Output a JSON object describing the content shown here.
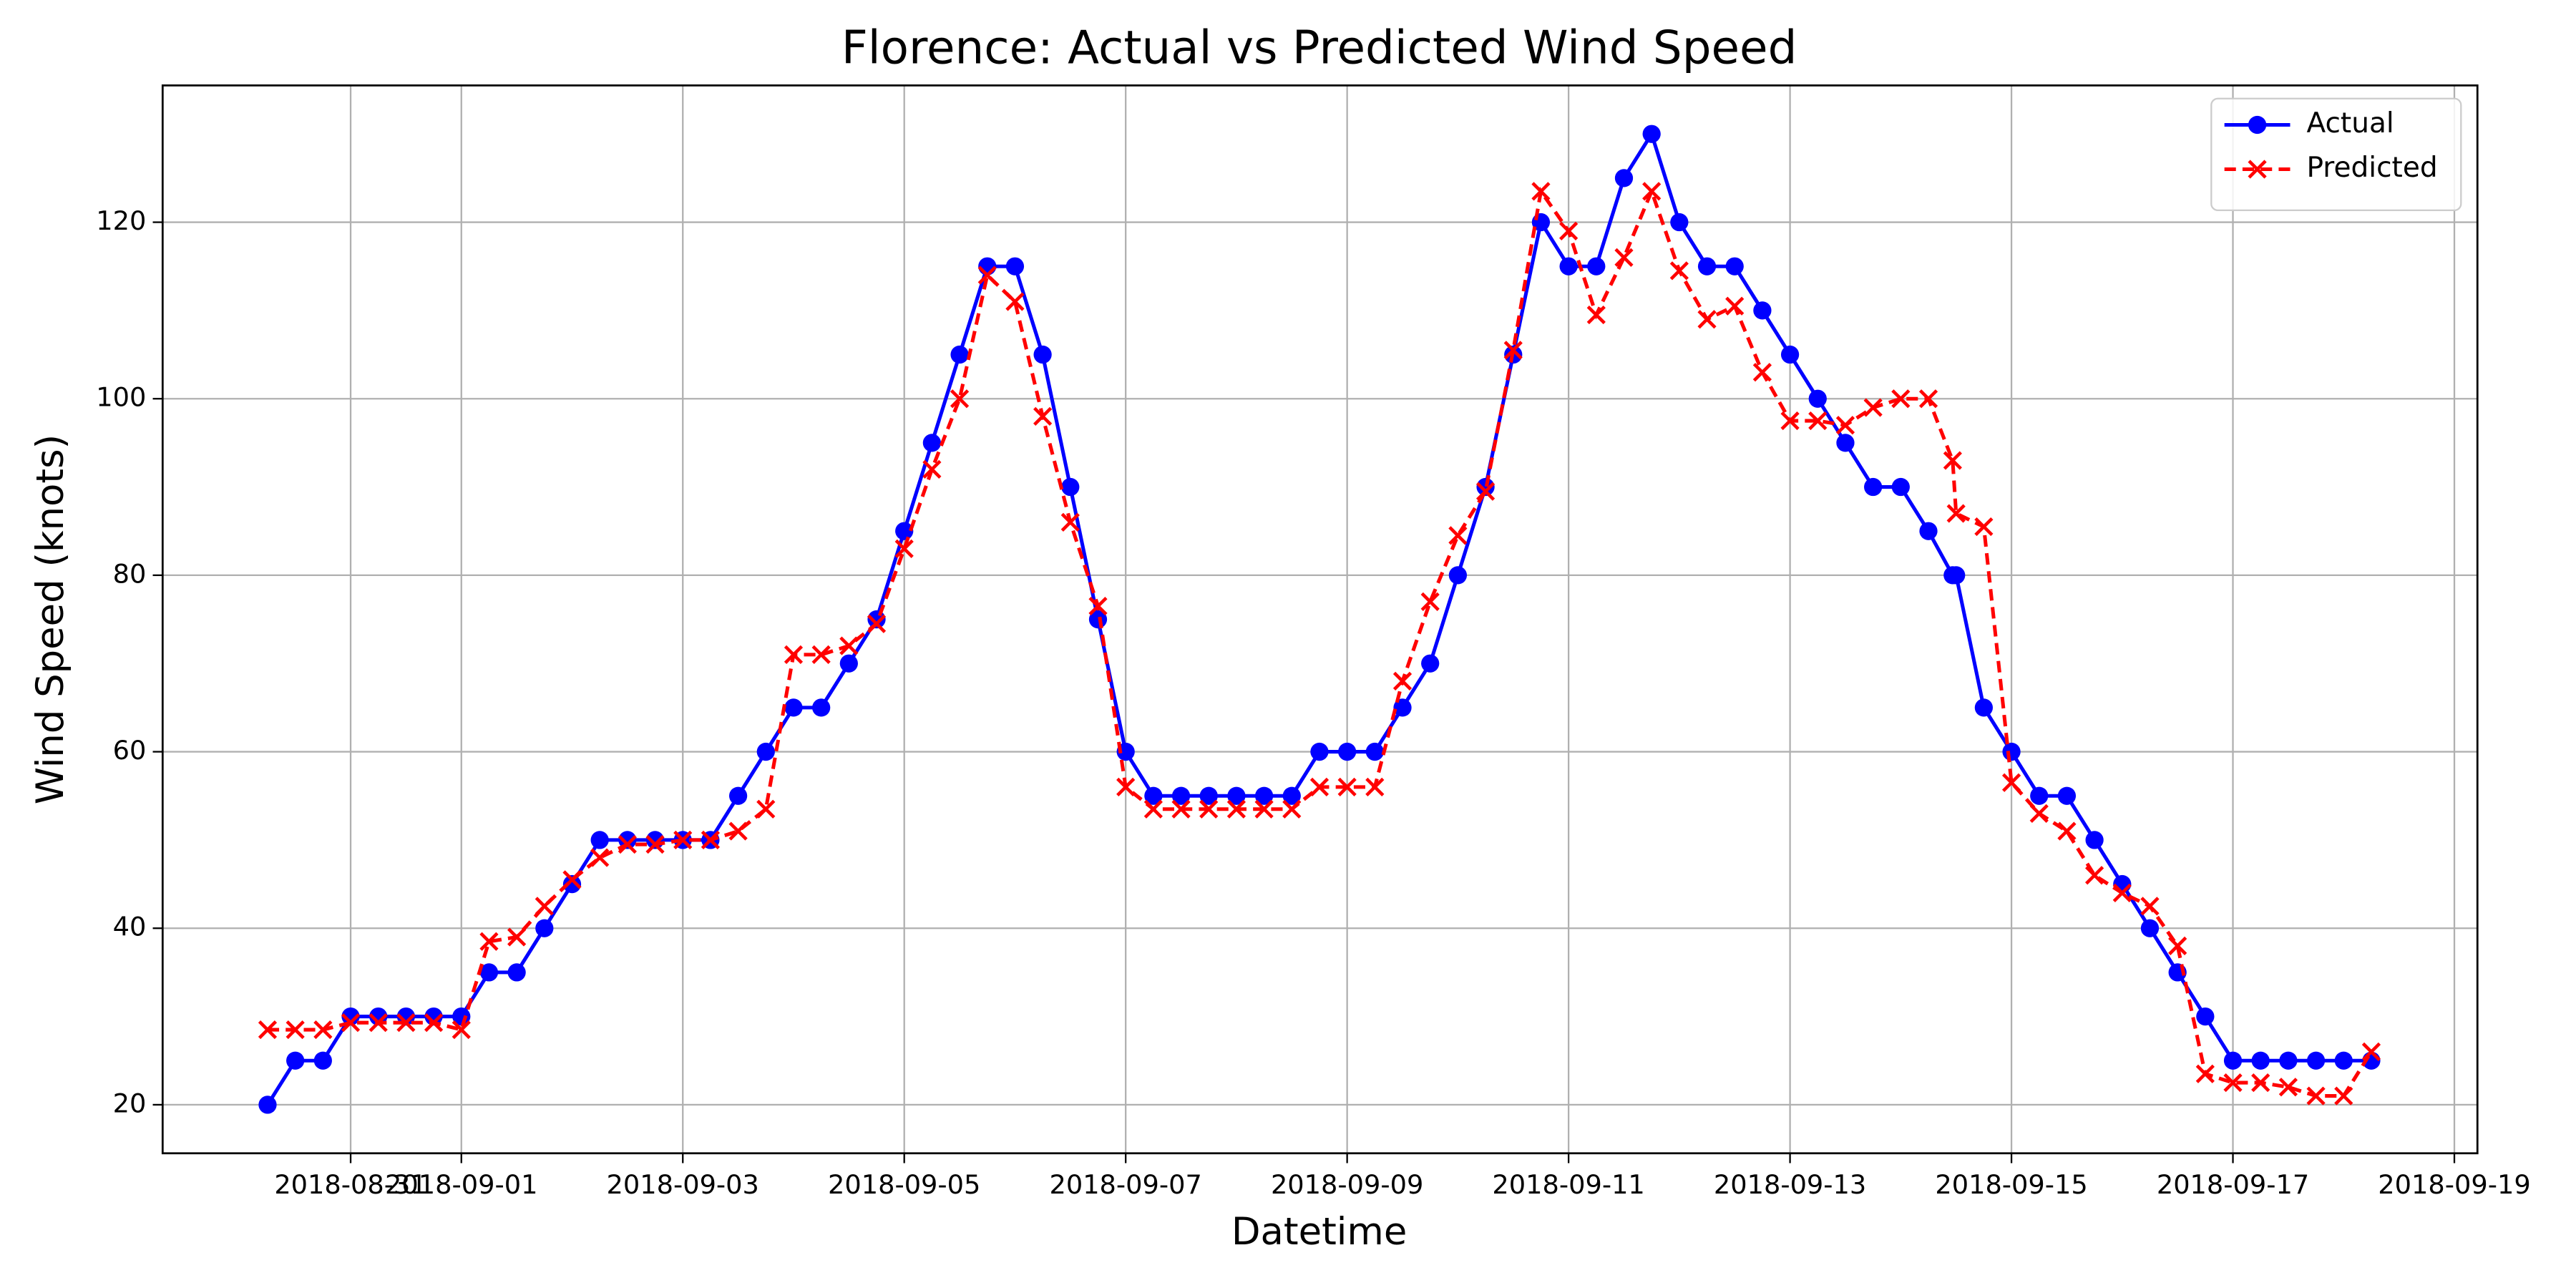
{
  "chart_data": {
    "type": "line",
    "title": "Florence: Actual vs Predicted Wind Speed",
    "x_label": "Datetime",
    "y_label": "Wind Speed (knots)",
    "x": [
      "2018-08-30 06:00",
      "2018-08-30 12:00",
      "2018-08-30 18:00",
      "2018-08-31 00:00",
      "2018-08-31 06:00",
      "2018-08-31 12:00",
      "2018-08-31 18:00",
      "2018-09-01 00:00",
      "2018-09-01 06:00",
      "2018-09-01 12:00",
      "2018-09-01 18:00",
      "2018-09-02 00:00",
      "2018-09-02 06:00",
      "2018-09-02 12:00",
      "2018-09-02 18:00",
      "2018-09-03 00:00",
      "2018-09-03 06:00",
      "2018-09-03 12:00",
      "2018-09-03 18:00",
      "2018-09-04 00:00",
      "2018-09-04 06:00",
      "2018-09-04 12:00",
      "2018-09-04 18:00",
      "2018-09-05 00:00",
      "2018-09-05 06:00",
      "2018-09-05 12:00",
      "2018-09-05 18:00",
      "2018-09-06 00:00",
      "2018-09-06 06:00",
      "2018-09-06 12:00",
      "2018-09-06 18:00",
      "2018-09-07 00:00",
      "2018-09-07 06:00",
      "2018-09-07 12:00",
      "2018-09-07 18:00",
      "2018-09-08 00:00",
      "2018-09-08 06:00",
      "2018-09-08 12:00",
      "2018-09-08 18:00",
      "2018-09-09 00:00",
      "2018-09-09 06:00",
      "2018-09-09 12:00",
      "2018-09-09 18:00",
      "2018-09-10 00:00",
      "2018-09-10 06:00",
      "2018-09-10 12:00",
      "2018-09-10 18:00",
      "2018-09-11 00:00",
      "2018-09-11 06:00",
      "2018-09-11 12:00",
      "2018-09-11 18:00",
      "2018-09-12 00:00",
      "2018-09-12 06:00",
      "2018-09-12 12:00",
      "2018-09-12 18:00",
      "2018-09-13 00:00",
      "2018-09-13 06:00",
      "2018-09-13 12:00",
      "2018-09-13 18:00",
      "2018-09-14 00:00",
      "2018-09-14 06:00",
      "2018-09-14 11:15",
      "2018-09-14 12:00",
      "2018-09-14 18:00",
      "2018-09-15 00:00",
      "2018-09-15 06:00",
      "2018-09-15 12:00",
      "2018-09-15 18:00",
      "2018-09-16 00:00",
      "2018-09-16 06:00",
      "2018-09-16 12:00",
      "2018-09-16 18:00",
      "2018-09-17 00:00",
      "2018-09-17 06:00",
      "2018-09-17 12:00",
      "2018-09-17 18:00",
      "2018-09-18 00:00",
      "2018-09-18 06:00"
    ],
    "series": [
      {
        "name": "Actual",
        "color": "#0000ff",
        "marker": "circle",
        "dashed": false,
        "values": [
          20,
          25,
          25,
          30,
          30,
          30,
          30,
          30,
          35,
          35,
          40,
          45,
          50,
          50,
          50,
          50,
          50,
          55,
          60,
          65,
          65,
          70,
          75,
          85,
          95,
          105,
          115,
          115,
          105,
          90,
          75,
          60,
          55,
          55,
          55,
          55,
          55,
          55,
          60,
          60,
          60,
          65,
          70,
          80,
          90,
          105,
          120,
          115,
          115,
          125,
          130,
          120,
          115,
          115,
          110,
          105,
          100,
          95,
          90,
          90,
          85,
          80,
          80,
          65,
          60,
          55,
          55,
          50,
          45,
          40,
          35,
          30,
          25,
          25,
          25,
          25,
          25,
          25
        ]
      },
      {
        "name": "Predicted",
        "color": "#ff0000",
        "marker": "x",
        "dashed": true,
        "values": [
          28.5,
          28.5,
          28.5,
          29.3,
          29.3,
          29.3,
          29.3,
          28.5,
          38.5,
          39,
          42.5,
          45.5,
          48,
          49.5,
          49.5,
          50,
          50,
          51,
          53.5,
          71,
          71,
          72,
          74.5,
          83,
          92,
          100,
          114,
          111,
          98,
          86,
          76.5,
          56,
          53.5,
          53.5,
          53.5,
          53.5,
          53.5,
          53.5,
          56,
          56,
          56,
          68,
          77,
          84.5,
          89.5,
          105.5,
          123.5,
          119,
          109.5,
          116,
          123.5,
          114.5,
          109,
          110.5,
          103,
          97.5,
          97.5,
          97,
          99,
          100,
          100,
          93,
          87,
          85.5,
          56.5,
          53,
          51,
          46,
          44,
          42.5,
          38,
          23.5,
          22.5,
          22.5,
          22,
          21,
          21,
          26
        ]
      }
    ],
    "xlim": [
      "2018-08-29 07:15",
      "2018-09-19 05:00"
    ],
    "xticks": [
      "2018-08-31",
      "2018-09-01",
      "2018-09-03",
      "2018-09-05",
      "2018-09-07",
      "2018-09-09",
      "2018-09-11",
      "2018-09-13",
      "2018-09-15",
      "2018-09-17",
      "2018-09-19"
    ],
    "ylim": [
      14.5,
      135.5
    ],
    "yticks": [
      20,
      40,
      60,
      80,
      100,
      120
    ],
    "grid": true,
    "legend": "upper right"
  }
}
